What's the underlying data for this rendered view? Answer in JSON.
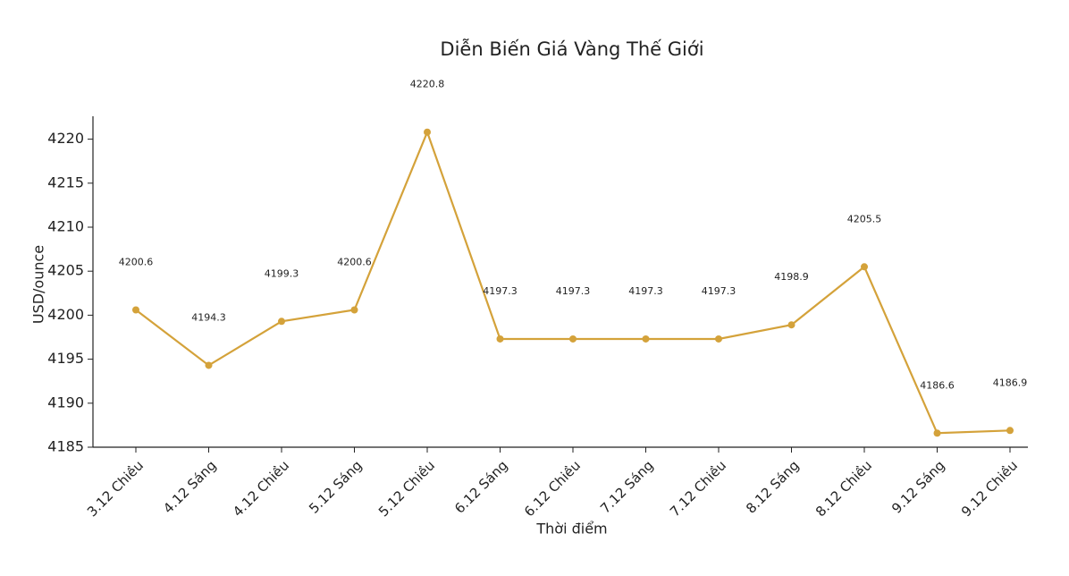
{
  "chart_data": {
    "type": "line",
    "title": "Diễn Biến Giá Vàng Thế Giới",
    "x_label": "Thời điểm",
    "y_label": "USD/ounce",
    "categories": [
      "3.12 Chiều",
      "4.12 Sáng",
      "4.12 Chiều",
      "5.12 Sáng",
      "5.12 Chiều",
      "6.12 Sáng",
      "6.12 Chiều",
      "7.12 Sáng",
      "7.12 Chiều",
      "8.12 Sáng",
      "8.12 Chiều",
      "9.12 Sáng",
      "9.12 Chiều"
    ],
    "values": [
      4200.6,
      4194.3,
      4199.3,
      4200.6,
      4220.8,
      4197.3,
      4197.3,
      4197.3,
      4197.3,
      4198.9,
      4205.5,
      4186.6,
      4186.9
    ],
    "color": "#d4a23a",
    "ylim": [
      4185,
      4222.6
    ],
    "yticks": [
      4185,
      4190,
      4195,
      4200,
      4205,
      4210,
      4215,
      4220
    ]
  }
}
